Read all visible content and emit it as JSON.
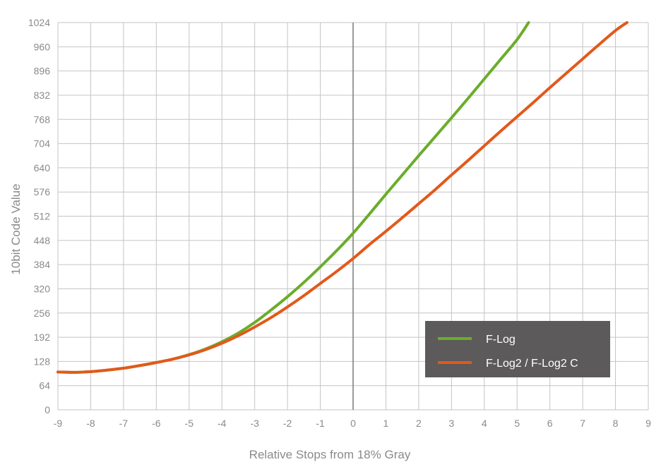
{
  "chart_data": {
    "type": "line",
    "xlabel": "Relative Stops from 18% Gray",
    "ylabel": "10bit Code Value",
    "xlim": [
      -9,
      9
    ],
    "ylim": [
      0,
      1024
    ],
    "xticks": [
      -9,
      -8,
      -7,
      -6,
      -5,
      -4,
      -3,
      -2,
      -1,
      0,
      1,
      2,
      3,
      4,
      5,
      6,
      7,
      8,
      9
    ],
    "yticks": [
      0,
      64,
      128,
      192,
      256,
      320,
      384,
      448,
      512,
      576,
      640,
      704,
      768,
      832,
      896,
      960,
      1024
    ],
    "grid": true,
    "legend_position": "lower-right",
    "legend_background": "#5c5a5a",
    "series": [
      {
        "name": "F-Log",
        "color": "#6aad2a",
        "x": [
          -9,
          -8.5,
          -8,
          -7.5,
          -7,
          -6.5,
          -6,
          -5.5,
          -5,
          -4.5,
          -4,
          -3.5,
          -3,
          -2.5,
          -2,
          -1.5,
          -1,
          -0.5,
          0,
          0.5,
          1,
          1.5,
          2,
          2.5,
          3,
          3.5,
          4,
          4.5,
          5,
          5.35
        ],
        "y": [
          100,
          99,
          101,
          105,
          110,
          117,
          125,
          134,
          146,
          161,
          180,
          203,
          231,
          264,
          299,
          337,
          378,
          421,
          467,
          518,
          570,
          621,
          672,
          722,
          772,
          823,
          875,
          927,
          979,
          1024
        ]
      },
      {
        "name": "F-Log2 / F-Log2 C",
        "color": "#e2591b",
        "x": [
          -9,
          -8.5,
          -8,
          -7.5,
          -7,
          -6.5,
          -6,
          -5.5,
          -5,
          -4.5,
          -4,
          -3.5,
          -3,
          -2.5,
          -2,
          -1.5,
          -1,
          -0.5,
          0,
          0.5,
          1,
          1.5,
          2,
          2.5,
          3,
          3.5,
          4,
          4.5,
          5,
          5.5,
          6,
          6.5,
          7,
          7.5,
          8,
          8.35
        ],
        "y": [
          100,
          99,
          101,
          105,
          110,
          117,
          125,
          134,
          145,
          159,
          176,
          196,
          219,
          244,
          272,
          302,
          334,
          366,
          400,
          437,
          472,
          508,
          545,
          582,
          621,
          659,
          698,
          737,
          775,
          813,
          852,
          890,
          928,
          966,
          1003,
          1024
        ]
      }
    ]
  }
}
